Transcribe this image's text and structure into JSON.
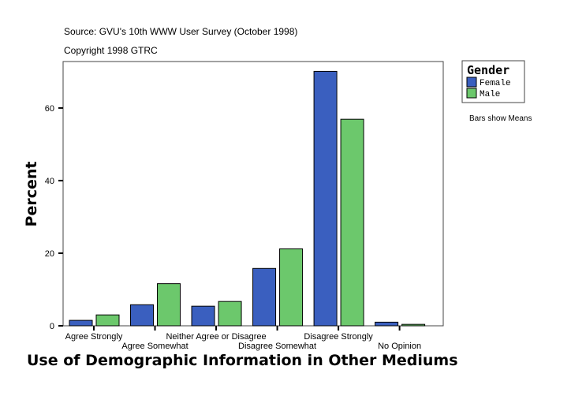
{
  "chart_data": {
    "type": "bar",
    "source": "Source: GVU's 10th WWW User Survey (October 1998)",
    "copyright": "Copyright 1998 GTRC",
    "xlabel": "Use of Demographic Information in Other Mediums",
    "ylabel": "Percent",
    "ylim": [
      0,
      72.8
    ],
    "yticks": [
      0,
      20,
      40,
      60
    ],
    "categories": [
      "Agree Strongly",
      "Agree Somewhat",
      "Neither Agree or Disagree",
      "Disagree Somewhat",
      "Disagree Strongly",
      "No Opinion"
    ],
    "legend_title": "Gender",
    "legend_placement": "top-right",
    "note": "Bars show Means",
    "series": [
      {
        "name": "Female",
        "color": "#3a5fbf",
        "values": [
          1.5,
          5.8,
          5.4,
          15.8,
          70.1,
          1.0
        ]
      },
      {
        "name": "Male",
        "color": "#6cc86c",
        "values": [
          3.0,
          11.6,
          6.7,
          21.2,
          56.9,
          0.4
        ]
      }
    ]
  }
}
